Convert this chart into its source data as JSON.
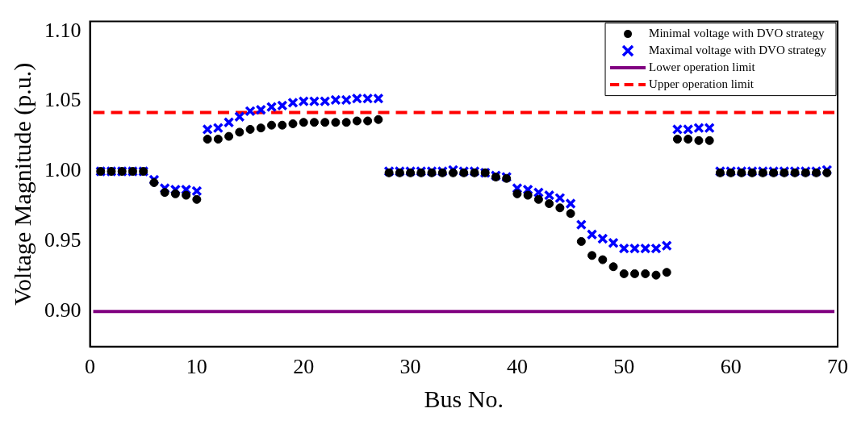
{
  "chart_data": {
    "type": "scatter",
    "xlabel": "Bus No.",
    "ylabel": "Voltage Magnitude (p.u.)",
    "x": [
      1,
      2,
      3,
      4,
      5,
      6,
      7,
      8,
      9,
      10,
      11,
      12,
      13,
      14,
      15,
      16,
      17,
      18,
      19,
      20,
      21,
      22,
      23,
      24,
      25,
      26,
      27,
      28,
      29,
      30,
      31,
      32,
      33,
      34,
      35,
      36,
      37,
      38,
      39,
      40,
      41,
      42,
      43,
      44,
      45,
      46,
      47,
      48,
      49,
      50,
      51,
      52,
      53,
      54,
      55,
      56,
      57,
      58,
      59,
      60,
      61,
      62,
      63,
      64,
      65,
      66,
      67,
      68,
      69
    ],
    "series": [
      {
        "name": "Minimal voltage with DVO strategy",
        "color": "#000000",
        "marker": "circle",
        "values": [
          1.0,
          1.0,
          1.0,
          1.0,
          1.0,
          0.992,
          0.985,
          0.984,
          0.983,
          0.98,
          1.023,
          1.023,
          1.025,
          1.028,
          1.03,
          1.031,
          1.033,
          1.033,
          1.034,
          1.035,
          1.035,
          1.035,
          1.035,
          1.035,
          1.036,
          1.036,
          1.037,
          0.999,
          0.999,
          0.999,
          0.999,
          0.999,
          0.999,
          0.999,
          0.999,
          0.999,
          0.999,
          0.996,
          0.995,
          0.984,
          0.983,
          0.98,
          0.977,
          0.974,
          0.97,
          0.95,
          0.94,
          0.937,
          0.932,
          0.927,
          0.927,
          0.927,
          0.926,
          0.928,
          1.023,
          1.023,
          1.022,
          1.022,
          0.999,
          0.999,
          0.999,
          0.999,
          0.999,
          0.999,
          0.999,
          0.999,
          0.999,
          0.999,
          0.999
        ]
      },
      {
        "name": "Maximal voltage with DVO strategy",
        "color": "#0000ff",
        "marker": "cross",
        "values": [
          1.0,
          1.0,
          1.0,
          1.0,
          1.0,
          0.994,
          0.988,
          0.987,
          0.987,
          0.986,
          1.03,
          1.031,
          1.035,
          1.039,
          1.043,
          1.044,
          1.046,
          1.047,
          1.049,
          1.05,
          1.05,
          1.05,
          1.051,
          1.051,
          1.052,
          1.052,
          1.052,
          1.0,
          1.0,
          1.0,
          1.0,
          1.0,
          1.0,
          1.001,
          1.0,
          1.0,
          0.999,
          0.997,
          0.996,
          0.988,
          0.987,
          0.985,
          0.983,
          0.981,
          0.977,
          0.962,
          0.955,
          0.952,
          0.949,
          0.945,
          0.945,
          0.945,
          0.945,
          0.947,
          1.03,
          1.03,
          1.031,
          1.031,
          1.0,
          1.0,
          1.0,
          1.0,
          1.0,
          1.0,
          1.0,
          1.0,
          1.0,
          1.0,
          1.001
        ]
      }
    ],
    "ref_lines": [
      {
        "axis": "y",
        "value": 0.9,
        "label": "Lower operation limit",
        "color": "#800080",
        "line_style": "solid"
      },
      {
        "axis": "y",
        "value": 1.042,
        "label": "Upper operation limit",
        "color": "#ff0000",
        "line_style": "dashed"
      }
    ],
    "xlim": [
      0,
      70
    ],
    "xticks": [
      0,
      10,
      20,
      30,
      40,
      50,
      60,
      70
    ],
    "ylim": [
      0.875,
      1.107
    ],
    "yticks": [
      {
        "value": 0.9,
        "label": "0.90"
      },
      0.95,
      {
        "value": 1.0,
        "label": "1.00"
      },
      1.05,
      {
        "value": 1.1,
        "label": "1.10"
      }
    ],
    "grid": false,
    "legend": "top right"
  }
}
